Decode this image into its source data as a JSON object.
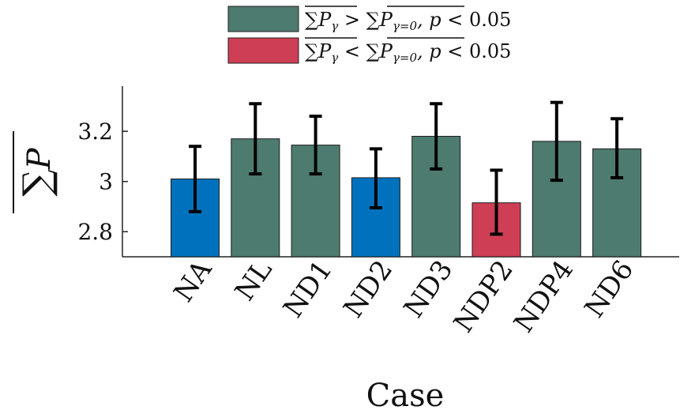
{
  "chart_data": {
    "type": "bar",
    "categories": [
      "NA",
      "NL",
      "ND1",
      "ND2",
      "ND3",
      "NDP2",
      "NDP4",
      "ND6"
    ],
    "values": [
      3.01,
      3.17,
      3.145,
      3.015,
      3.18,
      2.915,
      3.16,
      3.13
    ],
    "error_low": [
      2.88,
      3.03,
      3.03,
      2.895,
      3.05,
      2.79,
      3.005,
      3.015
    ],
    "error_high": [
      3.14,
      3.31,
      3.26,
      3.13,
      3.31,
      3.045,
      3.315,
      3.25
    ],
    "bar_groups": [
      "neutral",
      "greater",
      "greater",
      "neutral",
      "greater",
      "less",
      "greater",
      "greater"
    ],
    "colors": {
      "neutral": "#0072BD",
      "greater": "#4E7B70",
      "less": "#CE3F55",
      "error_bar": "#000000"
    },
    "xlabel": "Case",
    "ylabel": "∑P (overline)",
    "ylim": [
      2.7,
      3.38
    ],
    "yticks": [
      "2.8",
      "3",
      "3.2"
    ],
    "legend": {
      "placement": "top-center",
      "entries": [
        {
          "group": "greater",
          "label": "∑Pγ > ∑Pγ=0,  p < 0.05"
        },
        {
          "group": "less",
          "label": "∑Pγ < ∑Pγ=0,  p < 0.05"
        }
      ]
    },
    "grid": false
  }
}
